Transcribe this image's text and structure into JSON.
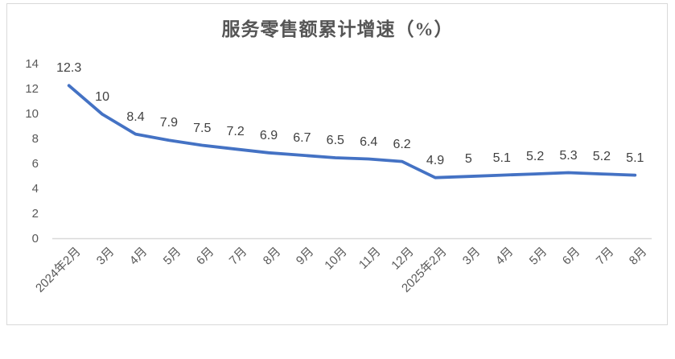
{
  "chart": {
    "title": "服务零售额累计增速（%）"
  },
  "chart_data": {
    "type": "line",
    "title": "服务零售额累计增速（%）",
    "categories": [
      "2024年2月",
      "3月",
      "4月",
      "5月",
      "6月",
      "7月",
      "8月",
      "9月",
      "10月",
      "11月",
      "12月",
      "2025年2月",
      "3月",
      "4月",
      "5月",
      "6月",
      "7月",
      "8月"
    ],
    "values": [
      12.3,
      10,
      8.4,
      7.9,
      7.5,
      7.2,
      6.9,
      6.7,
      6.5,
      6.4,
      6.2,
      4.9,
      5,
      5.1,
      5.2,
      5.3,
      5.2,
      5.1
    ],
    "data_labels": [
      "12.3",
      "10",
      "8.4",
      "7.9",
      "7.5",
      "7.2",
      "6.9",
      "6.7",
      "6.5",
      "6.4",
      "6.2",
      "4.9",
      "5",
      "5.1",
      "5.2",
      "5.3",
      "5.2",
      "5.1"
    ],
    "yticks": [
      0,
      2,
      4,
      6,
      8,
      10,
      12,
      14
    ],
    "ylim": [
      0,
      14
    ],
    "xlabel": "",
    "ylabel": "",
    "grid": false,
    "legend": "none",
    "colors": {
      "line": "#4472C4",
      "axis": "#D9D9D9",
      "data_label": "#404040",
      "tick_label": "#595959"
    }
  }
}
